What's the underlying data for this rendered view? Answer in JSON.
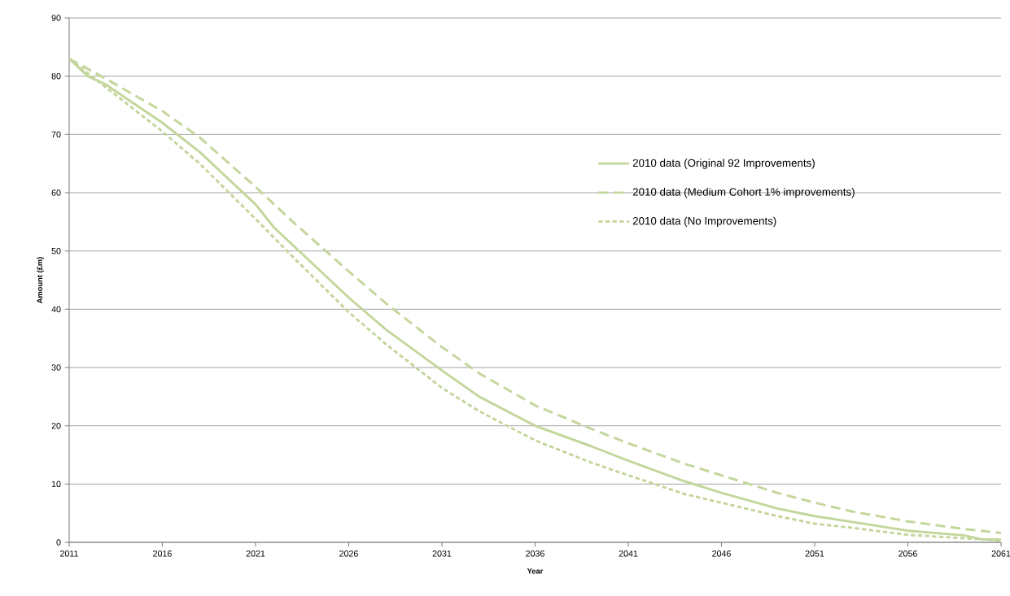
{
  "chart_data": {
    "type": "line",
    "xlabel": "Year",
    "ylabel": "Amount (£m)",
    "xlim": [
      2011,
      2061
    ],
    "xticks": [
      2011,
      2016,
      2021,
      2026,
      2031,
      2036,
      2041,
      2046,
      2051,
      2056,
      2061
    ],
    "ylim": [
      0,
      90
    ],
    "yticks": [
      0,
      10,
      20,
      30,
      40,
      50,
      60,
      70,
      80,
      90
    ],
    "grid": "y",
    "legend": "right",
    "series": [
      {
        "name": "2010 data (Original 92 Improvements)",
        "color": "#c3d69b",
        "line_style": "solid",
        "x": [
          2011,
          2012,
          2013,
          2016,
          2018,
          2021,
          2022,
          2024,
          2026,
          2028,
          2031,
          2033,
          2036,
          2039,
          2041,
          2044,
          2046,
          2049,
          2051,
          2053,
          2056,
          2059,
          2060,
          2061
        ],
        "values": [
          83,
          80,
          78.5,
          72,
          67,
          58,
          54,
          48,
          42,
          36.5,
          29.5,
          25,
          20,
          16.5,
          14,
          10.5,
          8.5,
          5.8,
          4.5,
          3.5,
          2,
          1.2,
          0.5,
          0.5
        ]
      },
      {
        "name": "2010 data (Medium Cohort 1% improvements)",
        "color": "#c3d69b",
        "line_style": "dashed",
        "x": [
          2011,
          2013,
          2016,
          2018,
          2021,
          2023,
          2026,
          2028,
          2031,
          2033,
          2036,
          2039,
          2041,
          2044,
          2046,
          2049,
          2051,
          2053,
          2056,
          2059,
          2061
        ],
        "values": [
          83,
          79.5,
          74,
          69.5,
          61,
          55,
          46.5,
          41,
          33.5,
          29,
          23.5,
          19.5,
          17,
          13.5,
          11.5,
          8.5,
          6.8,
          5.3,
          3.6,
          2.3,
          1.6
        ]
      },
      {
        "name": "2010 data (No Improvements)",
        "color": "#c3d69b",
        "line_style": "dotted",
        "x": [
          2011,
          2013,
          2016,
          2018,
          2021,
          2023,
          2026,
          2028,
          2031,
          2033,
          2036,
          2039,
          2041,
          2044,
          2046,
          2049,
          2051,
          2053,
          2056,
          2059,
          2061
        ],
        "values": [
          83,
          78,
          70.5,
          65,
          55.5,
          49,
          39.5,
          34,
          26.5,
          22.5,
          17.5,
          13.7,
          11.5,
          8.3,
          6.8,
          4.5,
          3.2,
          2.5,
          1.3,
          0.7,
          0.3
        ]
      }
    ]
  }
}
